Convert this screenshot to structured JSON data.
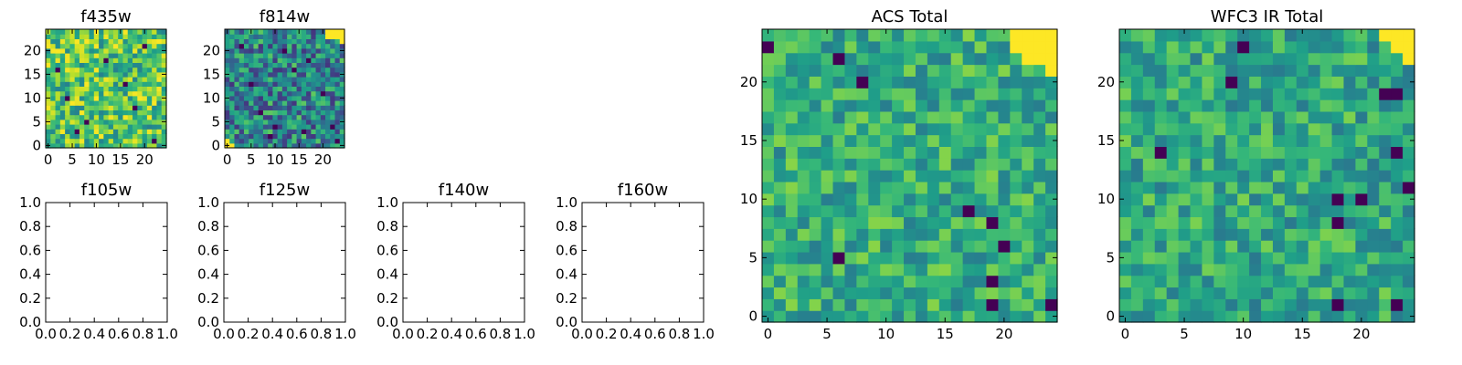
{
  "chart_data": [
    {
      "type": "heatmap",
      "title": "f435w",
      "grid_size": 25,
      "xlim": [
        -0.5,
        24.5
      ],
      "ylim": [
        -0.5,
        24.5
      ],
      "xticks": [
        0,
        5,
        10,
        15,
        20
      ],
      "yticks": [
        0,
        5,
        10,
        15,
        20
      ],
      "seed": 11,
      "base": 0.72,
      "spread": 0.28,
      "hot": [],
      "cold": [
        [
          4,
          10
        ],
        [
          8,
          5
        ],
        [
          16,
          13
        ],
        [
          20,
          21
        ],
        [
          22,
          1
        ],
        [
          12,
          18
        ],
        [
          6,
          3
        ],
        [
          18,
          8
        ],
        [
          2,
          16
        ]
      ],
      "colormap": "viridis"
    },
    {
      "type": "heatmap",
      "title": "f814w",
      "grid_size": 25,
      "xlim": [
        -0.5,
        24.5
      ],
      "ylim": [
        -0.5,
        24.5
      ],
      "xticks": [
        0,
        5,
        10,
        15,
        20
      ],
      "yticks": [
        0,
        5,
        10,
        15,
        20
      ],
      "seed": 23,
      "base": 0.45,
      "spread": 0.3,
      "hot": [
        [
          21,
          23
        ],
        [
          22,
          23
        ],
        [
          23,
          23
        ],
        [
          24,
          23
        ],
        [
          22,
          24
        ],
        [
          23,
          24
        ],
        [
          24,
          24
        ],
        [
          21,
          24
        ],
        [
          0,
          1
        ],
        [
          1,
          0
        ],
        [
          0,
          0
        ],
        [
          24,
          22
        ]
      ],
      "cold": [
        [
          12,
          20
        ],
        [
          5,
          13
        ],
        [
          9,
          2
        ],
        [
          14,
          16
        ],
        [
          17,
          18
        ],
        [
          22,
          4
        ],
        [
          3,
          21
        ],
        [
          10,
          4
        ],
        [
          23,
          1
        ],
        [
          20,
          11
        ],
        [
          7,
          7
        ],
        [
          16,
          3
        ]
      ],
      "colormap": "viridis"
    },
    {
      "type": "scatter",
      "title": "f105w",
      "xlim": [
        0.0,
        1.0
      ],
      "ylim": [
        0.0,
        1.0
      ],
      "xticks": [
        "0.0",
        "0.2",
        "0.4",
        "0.6",
        "0.8",
        "1.0"
      ],
      "yticks": [
        "0.0",
        "0.2",
        "0.4",
        "0.6",
        "0.8",
        "1.0"
      ]
    },
    {
      "type": "scatter",
      "title": "f125w",
      "xlim": [
        0.0,
        1.0
      ],
      "ylim": [
        0.0,
        1.0
      ],
      "xticks": [
        "0.0",
        "0.2",
        "0.4",
        "0.6",
        "0.8",
        "1.0"
      ],
      "yticks": [
        "0.0",
        "0.2",
        "0.4",
        "0.6",
        "0.8",
        "1.0"
      ]
    },
    {
      "type": "scatter",
      "title": "f140w",
      "xlim": [
        0.0,
        1.0
      ],
      "ylim": [
        0.0,
        1.0
      ],
      "xticks": [
        "0.0",
        "0.2",
        "0.4",
        "0.6",
        "0.8",
        "1.0"
      ],
      "yticks": [
        "0.0",
        "0.2",
        "0.4",
        "0.6",
        "0.8",
        "1.0"
      ]
    },
    {
      "type": "scatter",
      "title": "f160w",
      "xlim": [
        0.0,
        1.0
      ],
      "ylim": [
        0.0,
        1.0
      ],
      "xticks": [
        "0.0",
        "0.2",
        "0.4",
        "0.6",
        "0.8",
        "1.0"
      ],
      "yticks": [
        "0.0",
        "0.2",
        "0.4",
        "0.6",
        "0.8",
        "1.0"
      ]
    },
    {
      "type": "heatmap",
      "title": "ACS Total",
      "grid_size": 25,
      "xlim": [
        -0.5,
        24.5
      ],
      "ylim": [
        -0.5,
        24.5
      ],
      "xticks": [
        0,
        5,
        10,
        15,
        20
      ],
      "yticks": [
        0,
        5,
        10,
        15,
        20
      ],
      "seed": 37,
      "base": 0.62,
      "spread": 0.2,
      "hot": [
        [
          21,
          24
        ],
        [
          22,
          24
        ],
        [
          23,
          24
        ],
        [
          24,
          24
        ],
        [
          21,
          23
        ],
        [
          22,
          23
        ],
        [
          23,
          23
        ],
        [
          24,
          23
        ],
        [
          22,
          22
        ],
        [
          23,
          22
        ],
        [
          24,
          22
        ],
        [
          24,
          21
        ]
      ],
      "cold": [
        [
          0,
          23
        ],
        [
          6,
          22
        ],
        [
          8,
          20
        ],
        [
          17,
          9
        ],
        [
          19,
          8
        ],
        [
          19,
          3
        ],
        [
          24,
          1
        ],
        [
          6,
          5
        ],
        [
          19,
          1
        ],
        [
          20,
          6
        ]
      ],
      "colormap": "viridis"
    },
    {
      "type": "heatmap",
      "title": "WFC3 IR Total",
      "grid_size": 25,
      "xlim": [
        -0.5,
        24.5
      ],
      "ylim": [
        -0.5,
        24.5
      ],
      "xticks": [
        0,
        5,
        10,
        15,
        20
      ],
      "yticks": [
        0,
        5,
        10,
        15,
        20
      ],
      "seed": 53,
      "base": 0.6,
      "spread": 0.2,
      "hot": [
        [
          22,
          24
        ],
        [
          23,
          24
        ],
        [
          24,
          24
        ],
        [
          23,
          23
        ],
        [
          24,
          23
        ],
        [
          24,
          22
        ]
      ],
      "cold": [
        [
          10,
          23
        ],
        [
          9,
          20
        ],
        [
          22,
          19
        ],
        [
          23,
          19
        ],
        [
          3,
          14
        ],
        [
          23,
          14
        ],
        [
          18,
          10
        ],
        [
          18,
          8
        ],
        [
          24,
          11
        ],
        [
          20,
          10
        ],
        [
          18,
          1
        ],
        [
          23,
          1
        ]
      ],
      "colormap": "viridis"
    }
  ]
}
